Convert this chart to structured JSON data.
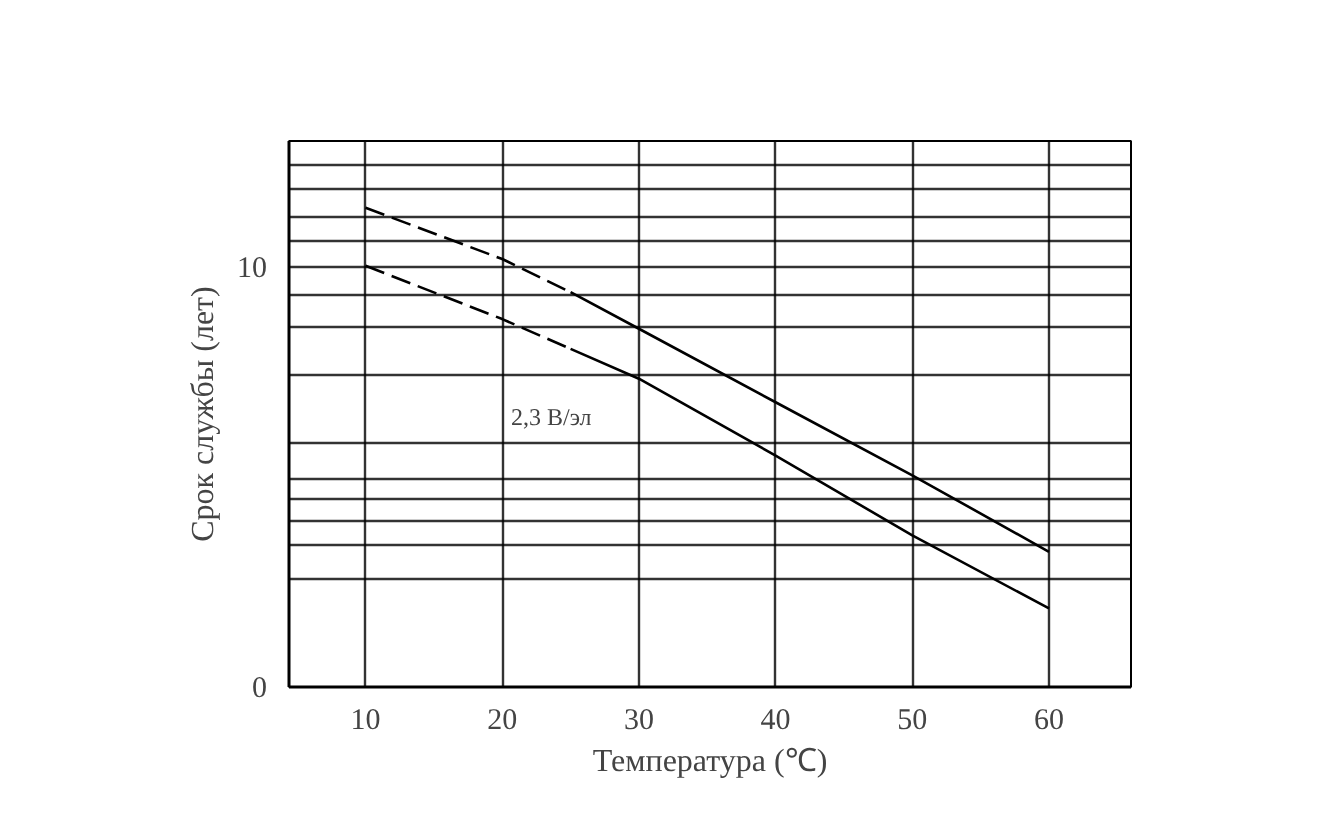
{
  "chart_data": {
    "type": "line",
    "xlabel": "Температура (℃)",
    "ylabel": "Срок службы (лет)",
    "xlim": [
      4.4,
      66
    ],
    "ylim": [
      0,
      13
    ],
    "xticks": [
      10,
      20,
      30,
      40,
      50,
      60
    ],
    "yticks": [
      0,
      {
        "value": 2.57,
        "label": null
      },
      {
        "value": 3.36,
        "label": null
      },
      {
        "value": 3.96,
        "label": null
      },
      {
        "value": 4.48,
        "label": null
      },
      {
        "value": 4.96,
        "label": null
      },
      {
        "value": 5.83,
        "label": null
      },
      {
        "value": 7.45,
        "label": null
      },
      {
        "value": 8.56,
        "label": null
      },
      {
        "value": 9.32,
        "label": null
      },
      10,
      {
        "value": 10.61,
        "label": null
      },
      {
        "value": 11.17,
        "label": null
      },
      {
        "value": 11.88,
        "label": null
      },
      {
        "value": 12.45,
        "label": null
      }
    ],
    "grid": true,
    "series": [
      {
        "color": "#000000",
        "line_style": "dashed",
        "x": [
          10,
          20,
          25
        ],
        "values": [
          11.41,
          10.19,
          9.4
        ]
      },
      {
        "color": "#000000",
        "line_style": "solid",
        "x": [
          25,
          30,
          40,
          50,
          60
        ],
        "values": [
          9.4,
          8.53,
          6.78,
          5.04,
          3.22
        ]
      },
      {
        "color": "#000000",
        "line_style": "dashed",
        "x": [
          10,
          20,
          25
        ],
        "values": [
          10.03,
          8.76,
          8.05
        ]
      },
      {
        "color": "#000000",
        "line_style": "solid",
        "x": [
          25,
          30,
          40,
          50,
          60
        ],
        "values": [
          8.05,
          7.34,
          5.51,
          3.61,
          1.87
        ]
      }
    ],
    "annotations": [
      "2,3 В/эл"
    ]
  }
}
